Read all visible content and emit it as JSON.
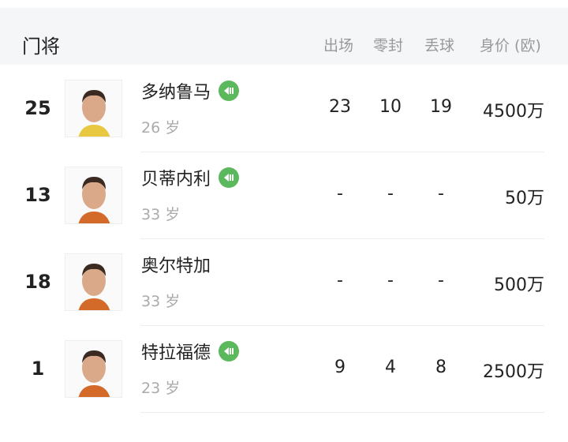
{
  "header": {
    "title": "门将",
    "columns": [
      "出场",
      "零封",
      "丢球",
      "身价 (欧)"
    ]
  },
  "players": [
    {
      "number": "25",
      "name": "多纳鲁马",
      "badge": true,
      "age": "26 岁",
      "apps": "23",
      "clean_sheets": "10",
      "conceded": "19",
      "value": "4500万"
    },
    {
      "number": "13",
      "name": "贝蒂内利",
      "badge": true,
      "age": "33 岁",
      "apps": "-",
      "clean_sheets": "-",
      "conceded": "-",
      "value": "50万"
    },
    {
      "number": "18",
      "name": "奥尔特加",
      "badge": false,
      "age": "33 岁",
      "apps": "-",
      "clean_sheets": "-",
      "conceded": "-",
      "value": "500万"
    },
    {
      "number": "1",
      "name": "特拉福德",
      "badge": true,
      "age": "23 岁",
      "apps": "9",
      "clean_sheets": "4",
      "conceded": "8",
      "value": "2500万"
    }
  ],
  "colors": {
    "badge": "#5cb85c",
    "header_bg": "#f5f6f8"
  }
}
